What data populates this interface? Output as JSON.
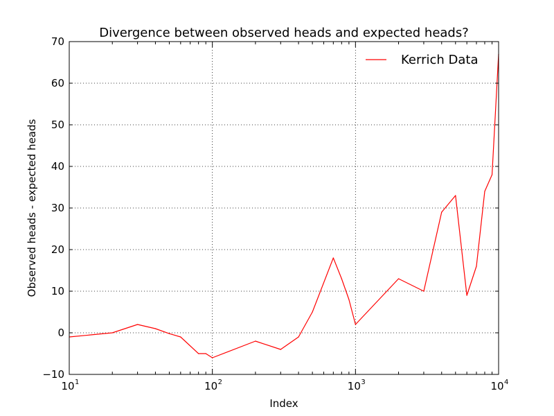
{
  "chart_data": {
    "type": "line",
    "title": "Divergence between observed heads and expected heads?",
    "xlabel": "Index",
    "ylabel": "Observed heads - expected heads",
    "xscale": "log",
    "xlim": [
      10,
      10000
    ],
    "ylim": [
      -10,
      70
    ],
    "grid": true,
    "legend_position": "top-right",
    "x_ticks": [
      {
        "base": "10",
        "exp": "1"
      },
      {
        "base": "10",
        "exp": "2"
      },
      {
        "base": "10",
        "exp": "3"
      },
      {
        "base": "10",
        "exp": "4"
      }
    ],
    "y_ticks": [
      "−10",
      "0",
      "10",
      "20",
      "30",
      "40",
      "50",
      "60",
      "70"
    ],
    "y_tick_values": [
      -10,
      0,
      10,
      20,
      30,
      40,
      50,
      60,
      70
    ],
    "series": [
      {
        "name": "Kerrich Data",
        "color": "#ff0000",
        "x": [
          10,
          20,
          30,
          40,
          50,
          60,
          80,
          90,
          100,
          200,
          300,
          400,
          500,
          700,
          800,
          900,
          1000,
          2000,
          3000,
          4000,
          5000,
          6000,
          7000,
          8000,
          9000,
          10000
        ],
        "y": [
          -1,
          0,
          2,
          1,
          -0.2,
          -1,
          -5,
          -5,
          -6,
          -2,
          -4,
          -1,
          5,
          18,
          13,
          8,
          2,
          13,
          10,
          29,
          33,
          9,
          16,
          34,
          38,
          67
        ]
      }
    ]
  }
}
